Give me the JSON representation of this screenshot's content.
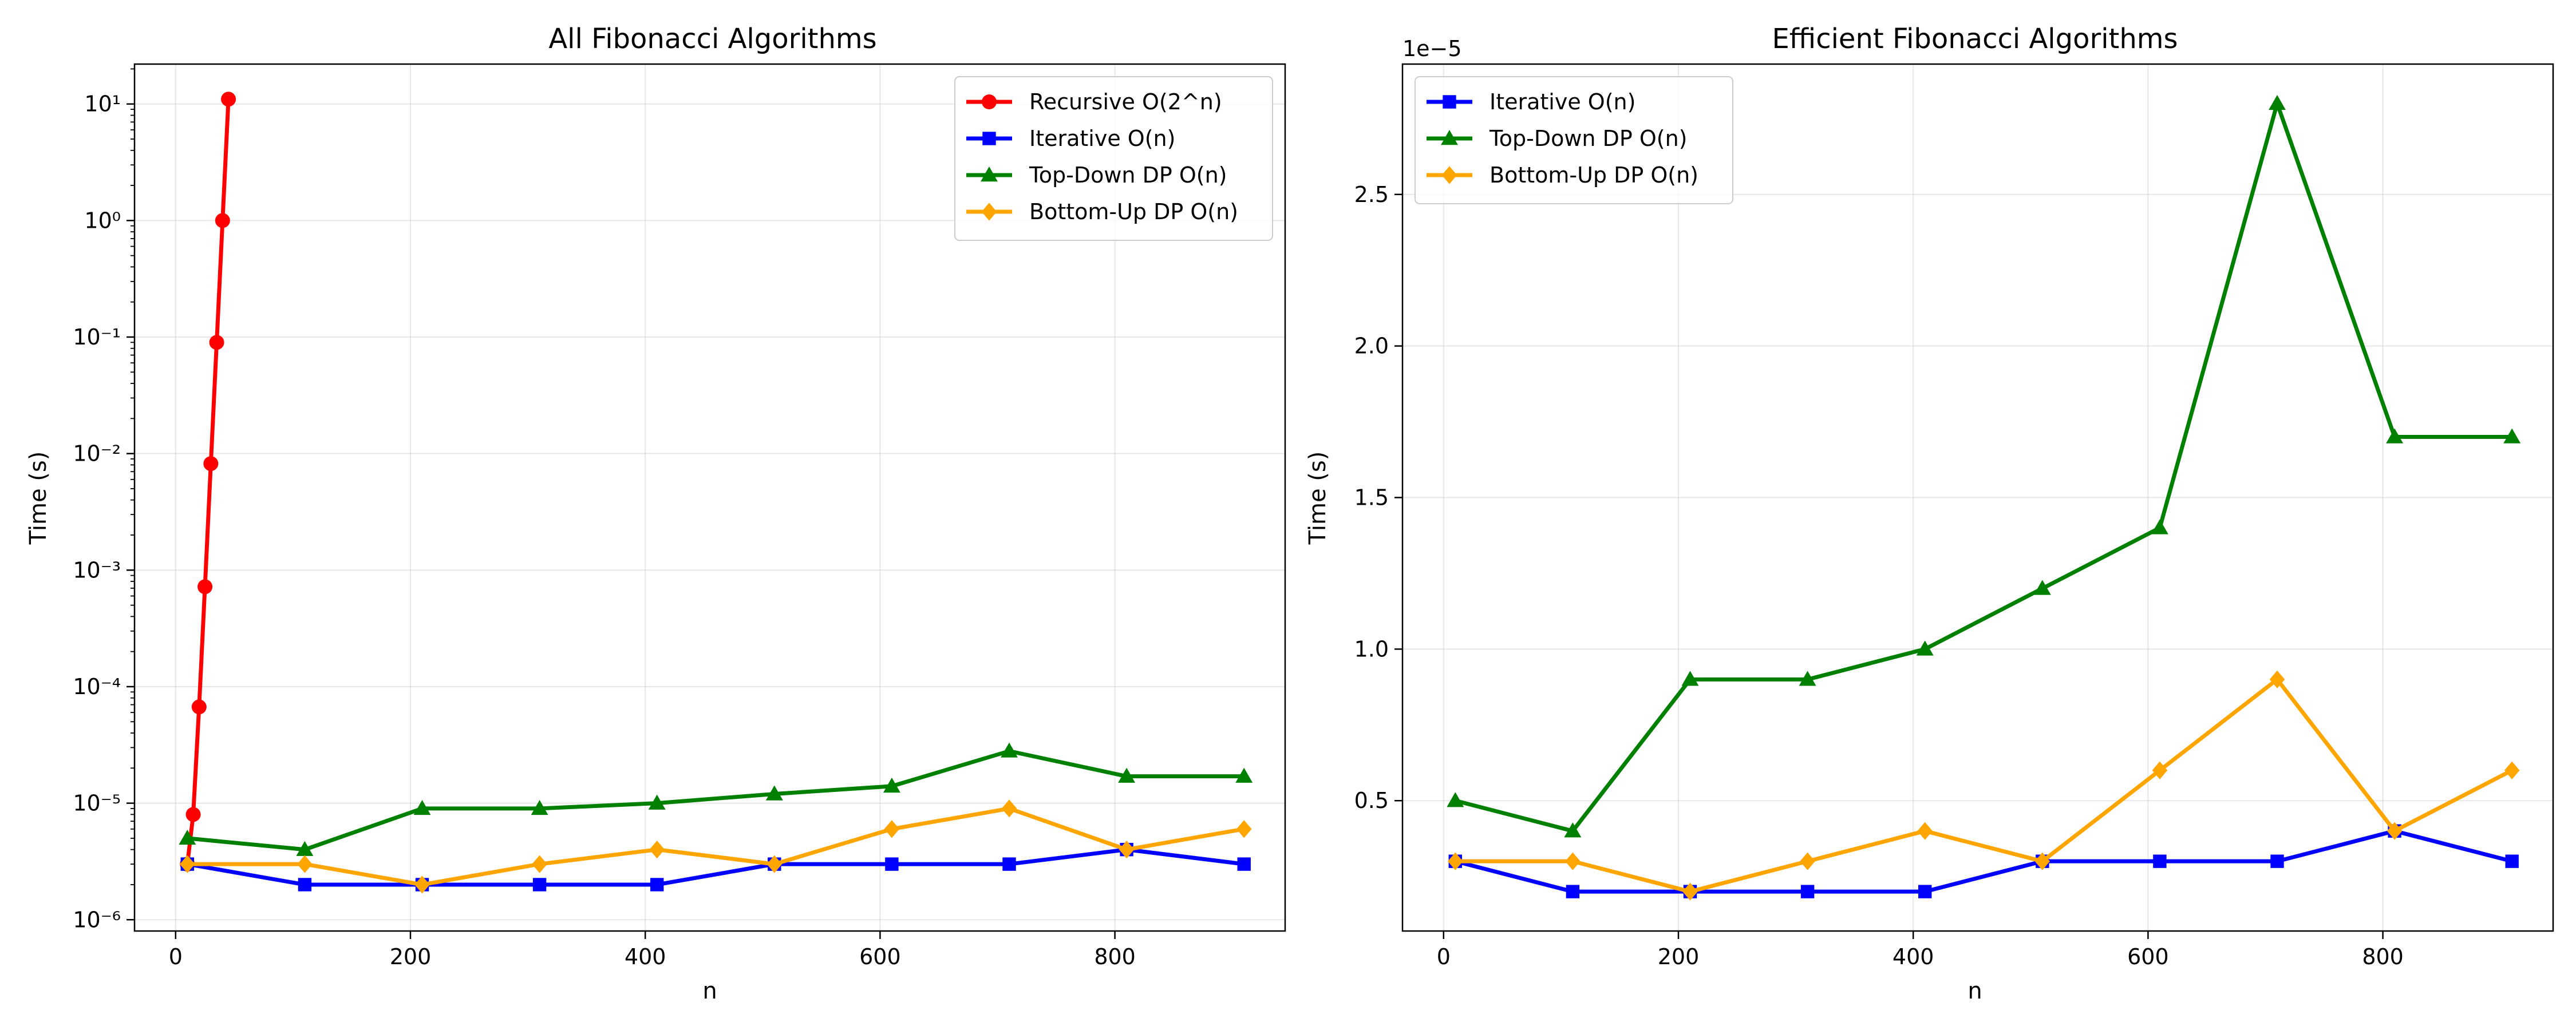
{
  "chart_data": [
    {
      "type": "line",
      "title": "All Fibonacci Algorithms",
      "xlabel": "n",
      "ylabel": "Time (s)",
      "yscale": "log",
      "xlim": [
        -35,
        945
      ],
      "ylim": [
        8e-07,
        22
      ],
      "grid": true,
      "legend_position": "top-right",
      "x_ticks": [
        0,
        200,
        400,
        600,
        800
      ],
      "y_tick_exponents": [
        -6,
        -5,
        -4,
        -3,
        -2,
        -1,
        0,
        1
      ],
      "series": [
        {
          "name": "Recursive O(2^n)",
          "color": "#ff0000",
          "marker": "circle",
          "x": [
            10,
            15,
            20,
            25,
            30,
            35,
            40,
            45
          ],
          "y": [
            3e-06,
            8e-06,
            6.7e-05,
            0.00072,
            0.0082,
            0.09,
            1.0,
            11.0
          ]
        },
        {
          "name": "Iterative O(n)",
          "color": "#0000ff",
          "marker": "square",
          "x": [
            10,
            110,
            210,
            310,
            410,
            510,
            610,
            710,
            810,
            910
          ],
          "y": [
            3e-06,
            2e-06,
            2e-06,
            2e-06,
            2e-06,
            3e-06,
            3e-06,
            3e-06,
            4e-06,
            3e-06
          ]
        },
        {
          "name": "Top-Down DP O(n)",
          "color": "#008000",
          "marker": "triangle",
          "x": [
            10,
            110,
            210,
            310,
            410,
            510,
            610,
            710,
            810,
            910
          ],
          "y": [
            5e-06,
            4e-06,
            9e-06,
            9e-06,
            1e-05,
            1.2e-05,
            1.4e-05,
            2.8e-05,
            1.7e-05,
            1.7e-05
          ]
        },
        {
          "name": "Bottom-Up DP O(n)",
          "color": "#ffa500",
          "marker": "diamond",
          "x": [
            10,
            110,
            210,
            310,
            410,
            510,
            610,
            710,
            810,
            910
          ],
          "y": [
            3e-06,
            3e-06,
            2e-06,
            3e-06,
            4e-06,
            3e-06,
            6e-06,
            9e-06,
            4e-06,
            6e-06
          ]
        }
      ]
    },
    {
      "type": "line",
      "title": "Efficient Fibonacci Algorithms",
      "xlabel": "n",
      "ylabel": "Time (s)",
      "yscale": "linear",
      "offset_label": "1e−5",
      "xlim": [
        -35,
        945
      ],
      "ylim": [
        0.07,
        2.93
      ],
      "grid": true,
      "legend_position": "top-left",
      "x_ticks": [
        0,
        200,
        400,
        600,
        800
      ],
      "y_ticks": [
        0.5,
        1.0,
        1.5,
        2.0,
        2.5
      ],
      "series": [
        {
          "name": "Iterative O(n)",
          "color": "#0000ff",
          "marker": "square",
          "x": [
            10,
            110,
            210,
            310,
            410,
            510,
            610,
            710,
            810,
            910
          ],
          "y": [
            0.3,
            0.2,
            0.2,
            0.2,
            0.2,
            0.3,
            0.3,
            0.3,
            0.4,
            0.3
          ]
        },
        {
          "name": "Top-Down DP O(n)",
          "color": "#008000",
          "marker": "triangle",
          "x": [
            10,
            110,
            210,
            310,
            410,
            510,
            610,
            710,
            810,
            910
          ],
          "y": [
            0.5,
            0.4,
            0.9,
            0.9,
            1.0,
            1.2,
            1.4,
            2.8,
            1.7,
            1.7
          ]
        },
        {
          "name": "Bottom-Up DP O(n)",
          "color": "#ffa500",
          "marker": "diamond",
          "x": [
            10,
            110,
            210,
            310,
            410,
            510,
            610,
            710,
            810,
            910
          ],
          "y": [
            0.3,
            0.3,
            0.2,
            0.3,
            0.4,
            0.3,
            0.6,
            0.9,
            0.4,
            0.6
          ]
        }
      ]
    }
  ]
}
